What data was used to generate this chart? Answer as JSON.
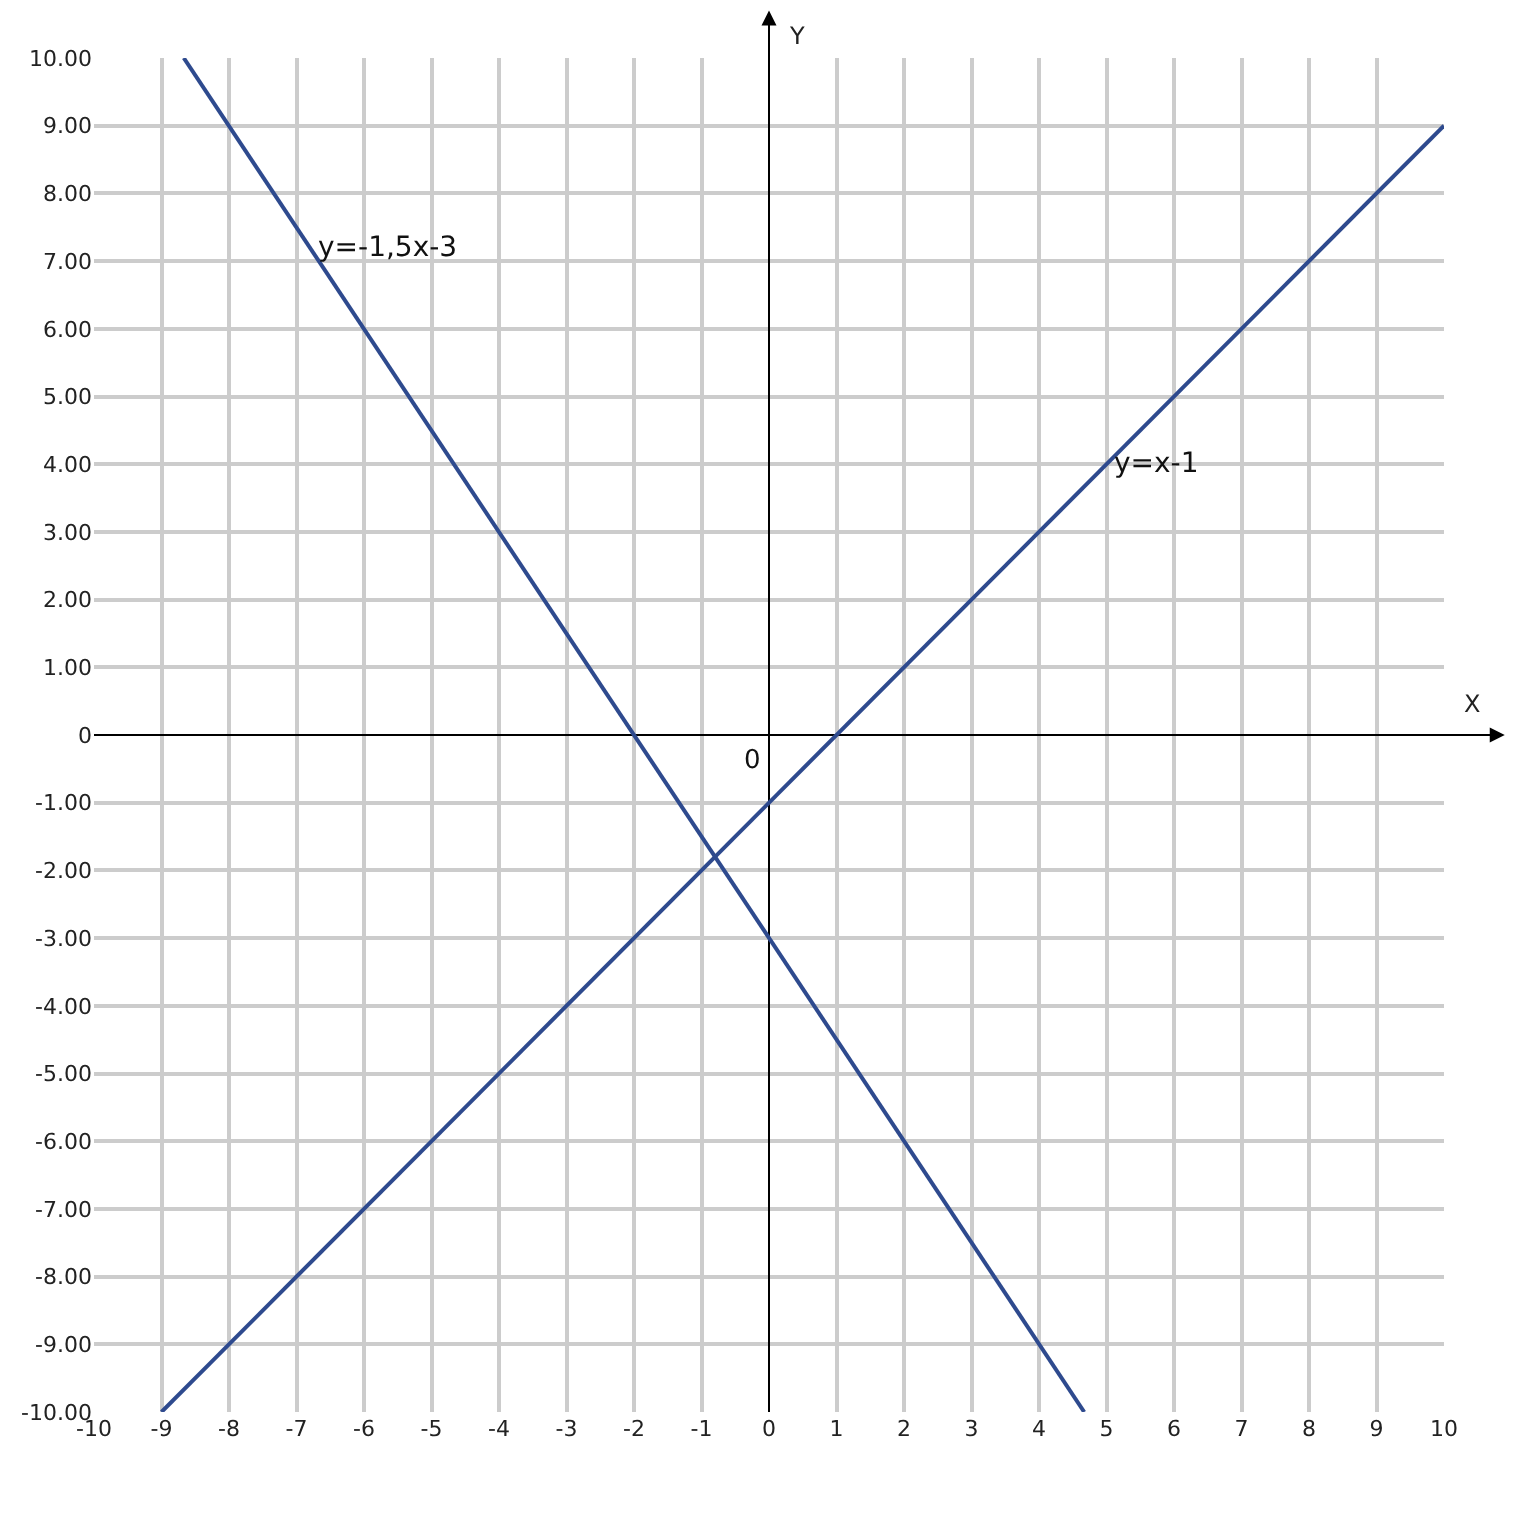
{
  "chart_data": {
    "type": "line",
    "xlabel": "X",
    "ylabel": "Y",
    "x": [
      -9,
      10
    ],
    "series": [
      {
        "color": "#2e4a8e",
        "values": [
          -10,
          9
        ]
      },
      {
        "color": "#2e4a8e",
        "x": [
          -8.67,
          4.67
        ],
        "values": [
          10,
          -10
        ]
      }
    ],
    "annotations": [
      {
        "text": "y=-1,5x-3",
        "x": -6.8,
        "y": 7.2
      },
      {
        "text": "y=x-1",
        "x": 5,
        "y": 4
      },
      "0"
    ],
    "xlim": [
      -10,
      10
    ],
    "ylim": [
      -10,
      10
    ],
    "xticks": [
      -10,
      -9,
      -8,
      -7,
      -6,
      -5,
      -4,
      -3,
      -2,
      -1,
      0,
      1,
      2,
      3,
      4,
      5,
      6,
      7,
      8,
      9,
      10
    ],
    "yticks": [
      {
        "value": 10,
        "label": "10.00"
      },
      {
        "value": 9,
        "label": "9.00"
      },
      {
        "value": 8,
        "label": "8.00"
      },
      {
        "value": 7,
        "label": "7.00"
      },
      {
        "value": 6,
        "label": "6.00"
      },
      {
        "value": 5,
        "label": "5.00"
      },
      {
        "value": 4,
        "label": "4.00"
      },
      {
        "value": 3,
        "label": "3.00"
      },
      {
        "value": 2,
        "label": "2.00"
      },
      {
        "value": 1,
        "label": "1.00"
      },
      {
        "value": 0,
        "label": "0"
      },
      {
        "value": -1,
        "label": "-1.00"
      },
      {
        "value": -2,
        "label": "-2.00"
      },
      {
        "value": -3,
        "label": "-3.00"
      },
      {
        "value": -4,
        "label": "-4.00"
      },
      {
        "value": -5,
        "label": "-5.00"
      },
      {
        "value": -6,
        "label": "-6.00"
      },
      {
        "value": -7,
        "label": "-7.00"
      },
      {
        "value": -8,
        "label": "-8.00"
      },
      {
        "value": -9,
        "label": "-9.00"
      },
      {
        "value": -10,
        "label": "-10.00"
      }
    ],
    "grid": true,
    "marker": "none",
    "line_style": "solid"
  }
}
